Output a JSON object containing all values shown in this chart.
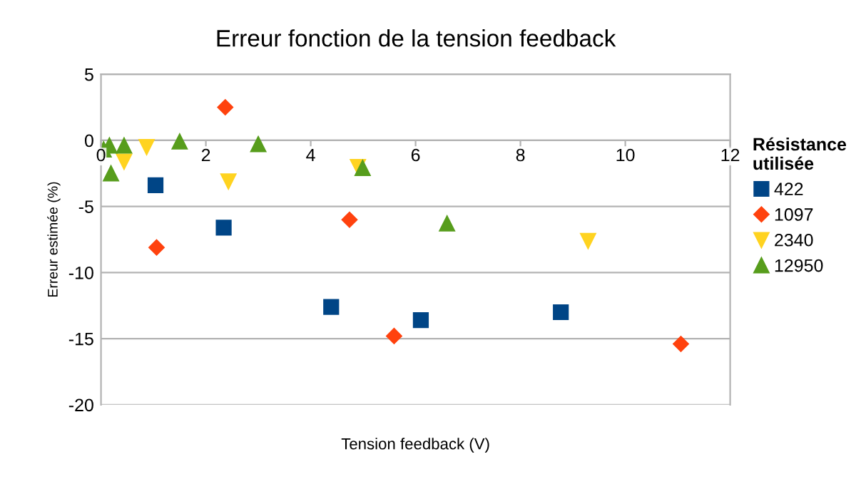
{
  "chart_data": {
    "type": "scatter",
    "title": "Erreur fonction de la tension feedback",
    "xlabel": "Tension feedback (V)",
    "ylabel": "Erreur estimée (%)",
    "legend_title": "Résistance\nutilisée",
    "xlim": [
      0,
      12
    ],
    "ylim": [
      -20,
      5
    ],
    "xticks": [
      0,
      2,
      4,
      6,
      8,
      10,
      12
    ],
    "yticks": [
      -20,
      -15,
      -10,
      -5,
      0,
      5
    ],
    "grid": "y",
    "legend": "right",
    "series": [
      {
        "name": "422",
        "color": "#004586",
        "marker": "square",
        "x": [
          1.04,
          2.34,
          4.39,
          6.1,
          8.77
        ],
        "values": [
          -3.4,
          -6.6,
          -12.6,
          -13.6,
          -13.0
        ]
      },
      {
        "name": "1097",
        "color": "#ff420e",
        "marker": "diamond",
        "x": [
          2.37,
          1.06,
          4.74,
          5.59,
          11.06
        ],
        "values": [
          2.5,
          -8.1,
          -6.0,
          -14.8,
          -15.4
        ]
      },
      {
        "name": "2340",
        "color": "#ffd320",
        "marker": "triangle_down",
        "x": [
          0.44,
          0.87,
          2.43,
          4.9,
          9.29
        ],
        "values": [
          -1.6,
          -0.5,
          -3.1,
          -2.0,
          -7.6
        ]
      },
      {
        "name": "12950",
        "color": "#579d1c",
        "marker": "triangle",
        "x": [
          0.05,
          0.16,
          0.44,
          0.19,
          1.5,
          3.0,
          4.99,
          6.6
        ],
        "values": [
          -0.7,
          -0.4,
          -0.4,
          -2.5,
          -0.1,
          -0.3,
          -2.1,
          -6.3
        ]
      }
    ]
  }
}
